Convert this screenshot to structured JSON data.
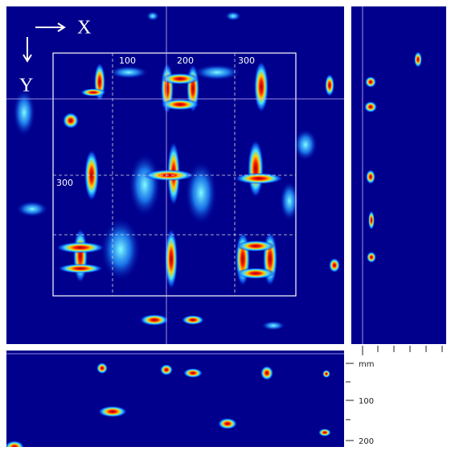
{
  "axis_labels": {
    "x": "X",
    "y": "Y"
  },
  "grid_labels": {
    "top": [
      "100",
      "200",
      "300"
    ],
    "left": [
      "300"
    ]
  },
  "scale": {
    "unit": "mm",
    "labels": [
      "100",
      "200"
    ]
  }
}
